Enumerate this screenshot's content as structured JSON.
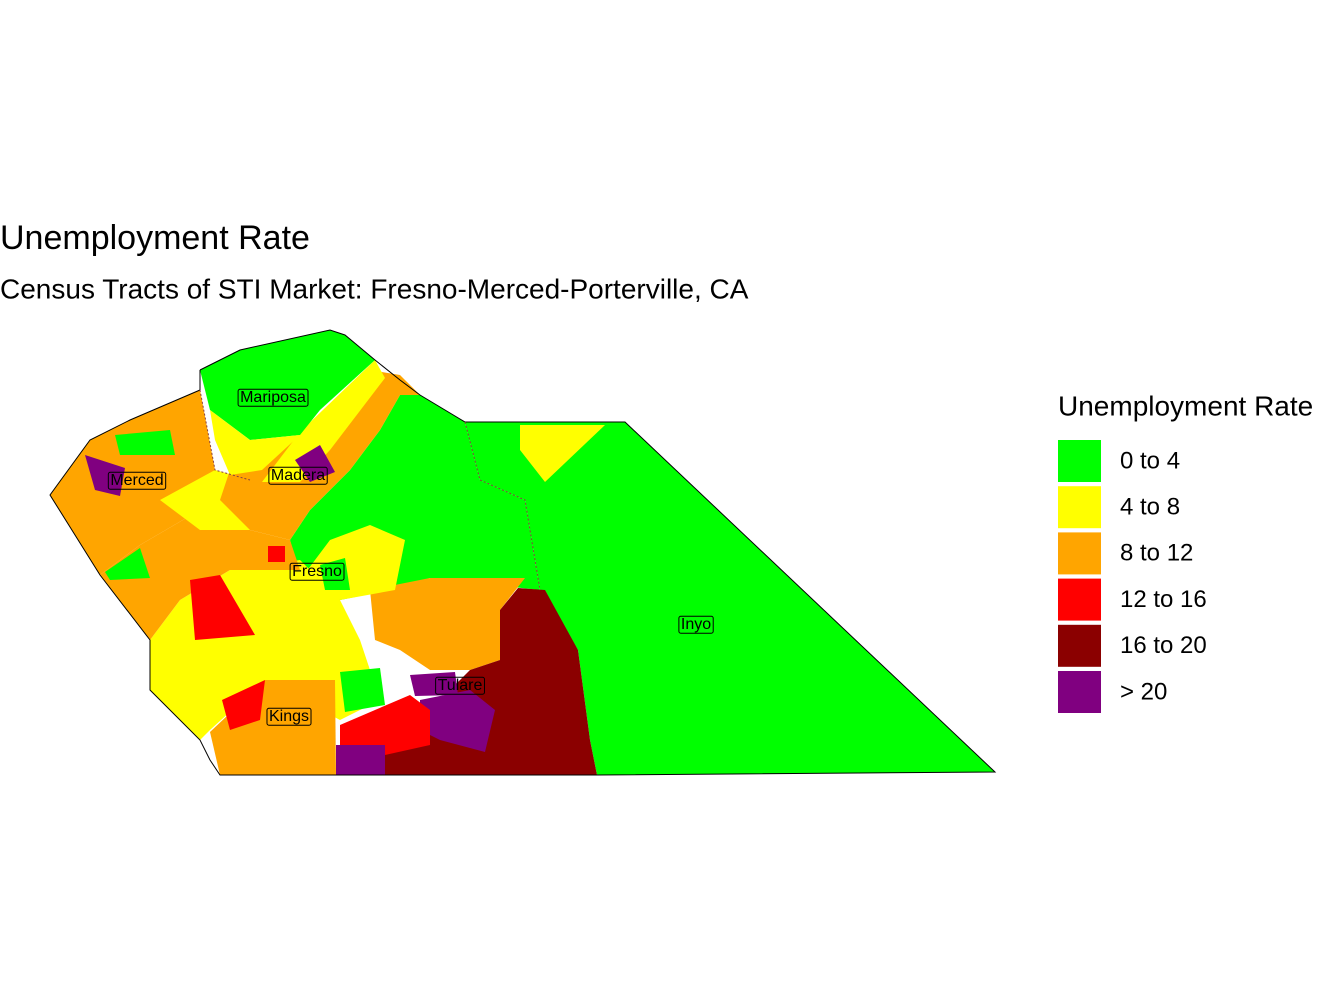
{
  "title": "Unemployment Rate",
  "subtitle": "Census Tracts of STI Market: Fresno-Merced-Porterville, CA",
  "legend": {
    "title": "Unemployment Rate",
    "items": [
      {
        "label": "0 to 4",
        "color": "#00ff00"
      },
      {
        "label": "4 to 8",
        "color": "#ffff00"
      },
      {
        "label": "8 to 12",
        "color": "#ffa500"
      },
      {
        "label": "12 to 16",
        "color": "#ff0000"
      },
      {
        "label": "16 to 20",
        "color": "#8b0000"
      },
      {
        "label": "> 20",
        "color": "#800080"
      }
    ]
  },
  "map": {
    "labels": [
      "Mariposa",
      "Merced",
      "Madera",
      "Fresno",
      "Tulare",
      "Kings",
      "Inyo"
    ]
  }
}
